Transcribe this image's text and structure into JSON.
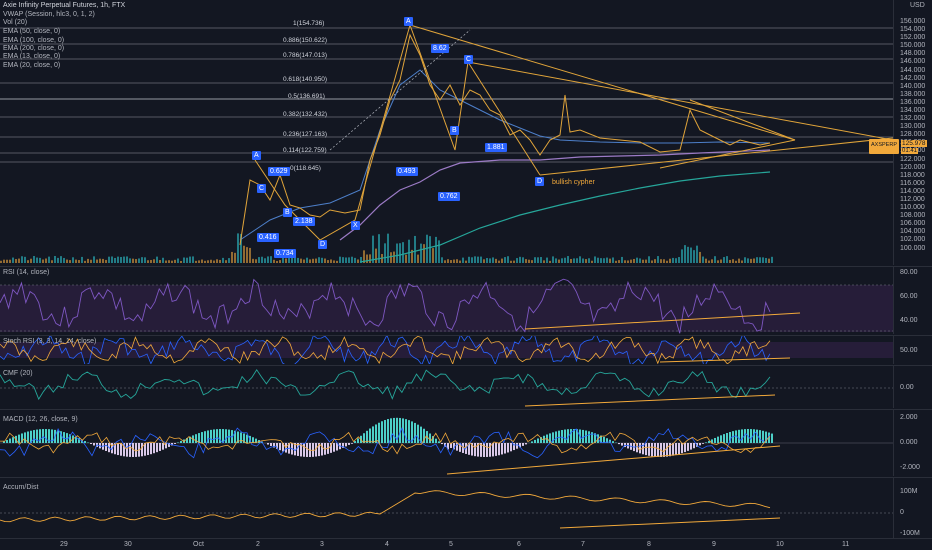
{
  "header": {
    "title": "Axie Infinity Perpetual Futures, 1h, FTX",
    "indicators": [
      "VWAP (Session, hlc3, 0, 1, 2)",
      "Vol (20)",
      "EMA (50, close, 0)",
      "EMA (100, close, 0)",
      "EMA (200, close, 0)",
      "EMA (13, close, 0)",
      "EMA (20, close, 0)"
    ],
    "currency": "USD"
  },
  "price_axis": [
    "156.000",
    "154.000",
    "152.000",
    "150.000",
    "148.000",
    "146.000",
    "144.000",
    "142.000",
    "140.000",
    "138.000",
    "136.000",
    "134.000",
    "132.000",
    "130.000",
    "128.000",
    "126.000",
    "124.000",
    "122.000",
    "120.000",
    "118.000",
    "116.000",
    "114.000",
    "112.000",
    "110.000",
    "108.000",
    "106.000",
    "104.000",
    "102.000",
    "100.000"
  ],
  "price_axis_labels": {
    "usd_marker": "USD"
  },
  "symbol_tag": {
    "symbol": "AXSPERP",
    "price": "125.978",
    "countdown": "01:41"
  },
  "fib_levels": [
    {
      "label": "1(154.736)"
    },
    {
      "label": "0.886(150.622)"
    },
    {
      "label": "0.786(147.013)"
    },
    {
      "label": "0.618(140.950)"
    },
    {
      "label": "0.5(136.691)"
    },
    {
      "label": "0.382(132.432)"
    },
    {
      "label": "0.236(127.163)"
    },
    {
      "label": "0.114(122.759)"
    },
    {
      "label": "0(118.645)"
    }
  ],
  "pattern_points": [
    "A",
    "B",
    "C",
    "D",
    "X",
    "A",
    "B",
    "C",
    "D"
  ],
  "ratios": [
    "0.629",
    "2.138",
    "0.416",
    "0.734",
    "8.62",
    "1.881",
    "0.493",
    "0.762"
  ],
  "pattern_name": "bullish cypher",
  "rsi": {
    "label": "RSI (14, close)",
    "axis": [
      "80.00",
      "60.00",
      "40.00"
    ]
  },
  "stoch": {
    "label": "Stoch RSI (3, 3, 14, 14, close)",
    "axis": [
      "50.00"
    ]
  },
  "cmf": {
    "label": "CMF (20)",
    "axis": [
      "0.00"
    ]
  },
  "macd": {
    "label": "MACD (12, 26, close, 9)",
    "axis": [
      "2.000",
      "0.000",
      "-2.000"
    ]
  },
  "accum": {
    "label": "Accum/Dist",
    "axis": [
      "100M",
      "0",
      "-100M"
    ]
  },
  "time_axis": [
    "29",
    "30",
    "Oct",
    "2",
    "3",
    "4",
    "5",
    "6",
    "7",
    "8",
    "9",
    "10",
    "11"
  ]
}
